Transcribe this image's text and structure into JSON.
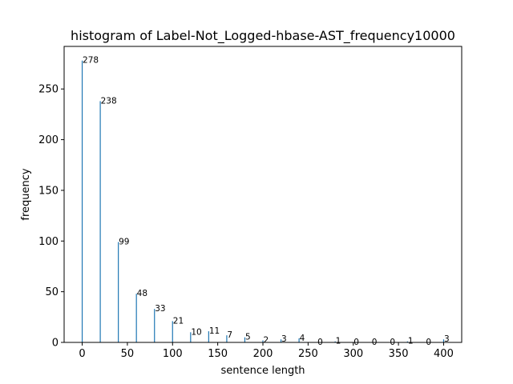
{
  "chart_data": {
    "type": "bar",
    "title": "histogram of Label-Not_Logged-hbase-AST_frequency10000",
    "xlabel": "sentence length",
    "ylabel": "frequency",
    "xlim": [
      -20,
      420
    ],
    "ylim": [
      0,
      292
    ],
    "x_ticks": [
      0,
      50,
      100,
      150,
      200,
      250,
      300,
      350,
      400
    ],
    "y_ticks": [
      0,
      50,
      100,
      150,
      200,
      250
    ],
    "grid": false,
    "bar_color": "#1f77b4",
    "x": [
      0,
      20,
      40,
      60,
      80,
      100,
      120,
      140,
      160,
      180,
      200,
      220,
      240,
      260,
      280,
      300,
      320,
      340,
      360,
      380,
      400
    ],
    "values": [
      278,
      238,
      99,
      48,
      33,
      21,
      10,
      11,
      7,
      5,
      2,
      3,
      4,
      0,
      1,
      0,
      0,
      0,
      1,
      0,
      3
    ]
  }
}
